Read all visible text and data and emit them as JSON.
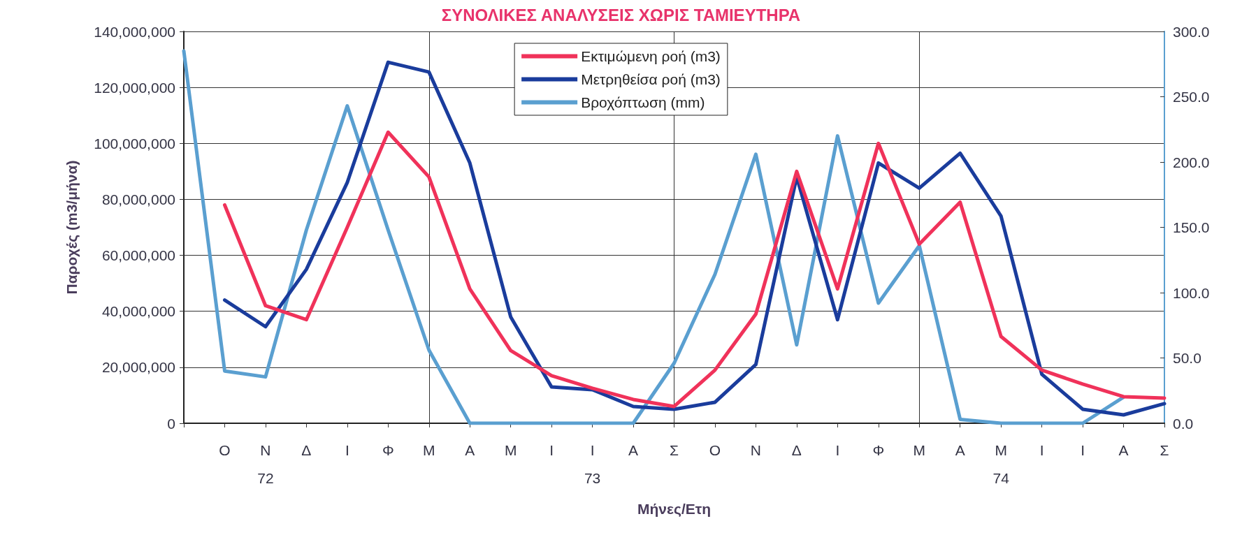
{
  "chart_data": {
    "type": "line",
    "title": "ΣΥΝΟΛΙΚΕΣ ΑΝΑΛΥΣΕΙΣ ΧΩΡΙΣ ΤΑΜΙΕΥΤΗΡΑ",
    "xlabel": "Μήνες/Ετη",
    "ylabel": "Παροχές (m3/μήνα)",
    "categories": [
      null,
      "Ο",
      "Ν\n72",
      "Δ",
      "Ι",
      "Φ",
      "Μ",
      "Α",
      "Μ",
      "Ι",
      "Ι\n73",
      "Α",
      "Σ",
      "Ο",
      "Ν",
      "Δ",
      "Ι",
      "Φ",
      "Μ",
      "Α",
      "Μ\n74",
      "Ι",
      "Ι",
      "Α",
      "Σ"
    ],
    "series": [
      {
        "name": "Εκτιμώμενη ροή (m3)",
        "color": "#f0325a",
        "values": [
          null,
          78000000,
          42000000,
          37000000,
          70000000,
          104000000,
          88000000,
          48000000,
          26000000,
          17000000,
          12500000,
          8500000,
          6000000,
          19000000,
          39000000,
          90000000,
          48000000,
          100000000,
          64000000,
          79000000,
          31000000,
          19000000,
          14000000,
          9500000,
          9000000
        ]
      },
      {
        "name": "Μετρηθείσα ροή (m3)",
        "color": "#1a3c9c",
        "values": [
          null,
          44000000,
          34500000,
          55000000,
          86000000,
          129000000,
          125500000,
          93000000,
          38000000,
          13000000,
          12000000,
          6000000,
          5000000,
          7500000,
          21000000,
          88000000,
          37000000,
          93000000,
          84000000,
          96500000,
          74000000,
          17500000,
          5000000,
          3000000,
          7000000
        ]
      },
      {
        "name": "Βροχόπτωση (mm)",
        "color": "#5a9fd0",
        "axis": "y2",
        "values": [
          285,
          40,
          35.5,
          148,
          243,
          148,
          56,
          0,
          0,
          0,
          0,
          0,
          46,
          114,
          206,
          60,
          220,
          92,
          136,
          3,
          0,
          0,
          0,
          20,
          null
        ]
      }
    ],
    "ylim": [
      0,
      140000000
    ],
    "yticks": [
      0,
      {
        "value": 20000000,
        "label": "20,000,000"
      },
      {
        "value": 40000000,
        "label": "40,000,000"
      },
      {
        "value": 60000000,
        "label": "60,000,000"
      },
      {
        "value": 80000000,
        "label": "80,000,000"
      },
      {
        "value": 100000000,
        "label": "100,000,000"
      },
      {
        "value": 120000000,
        "label": "120,000,000"
      },
      {
        "value": 140000000,
        "label": "140,000,000"
      }
    ],
    "y2lim": [
      0,
      300
    ],
    "y2ticks": [
      {
        "value": 0,
        "label": "0.0"
      },
      {
        "value": 50,
        "label": "50.0"
      },
      {
        "value": 100,
        "label": "100.0"
      },
      {
        "value": 150,
        "label": "150.0"
      },
      {
        "value": 200,
        "label": "200.0"
      },
      {
        "value": 250,
        "label": "250.0"
      },
      {
        "value": 300,
        "label": "300.0"
      }
    ],
    "grid": true,
    "legend": "top",
    "marker": "none",
    "line_style": "solid"
  }
}
